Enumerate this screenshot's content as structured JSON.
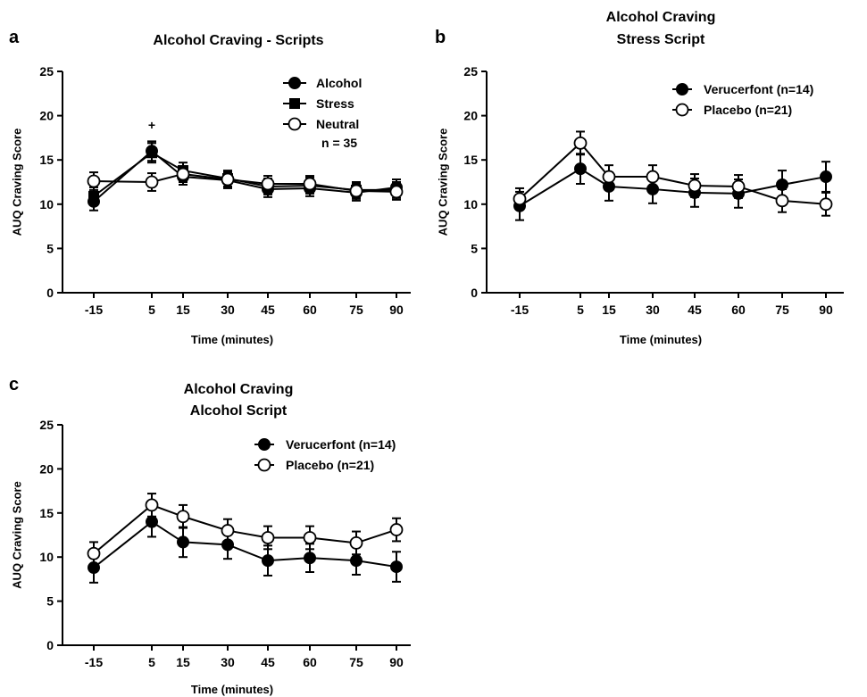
{
  "panels": [
    {
      "letter": "a",
      "title_lines": [
        "Alcohol Craving - Scripts"
      ],
      "note": "n = 35",
      "marker_label": "+"
    },
    {
      "letter": "b",
      "title_lines": [
        "Alcohol Craving",
        "Stress Script"
      ],
      "note": "",
      "marker_label": ""
    },
    {
      "letter": "c",
      "title_lines": [
        "Alcohol Craving",
        "Alcohol Script"
      ],
      "note": "",
      "marker_label": ""
    }
  ],
  "chart_data": [
    {
      "type": "line",
      "title": "Alcohol Craving - Scripts",
      "xlabel": "Time (minutes)",
      "ylabel": "AUQ Craving Score",
      "x": [
        -15,
        5,
        15,
        30,
        45,
        60,
        75,
        90
      ],
      "xticks": [
        "-15",
        "5",
        "15",
        "30",
        "45",
        "60",
        "75",
        "90"
      ],
      "yticks": [
        "0",
        "5",
        "10",
        "15",
        "20",
        "25"
      ],
      "ylim": [
        0,
        25
      ],
      "legend_position": "top-right",
      "annotation": {
        "text": "+",
        "x": 5
      },
      "series": [
        {
          "name": "Alcohol",
          "marker": "filled-circle",
          "values": [
            10.3,
            16.0,
            13.1,
            12.7,
            11.7,
            11.8,
            11.3,
            11.9
          ],
          "errors": [
            1.0,
            1.1,
            0.9,
            0.9,
            0.9,
            0.9,
            0.9,
            0.9
          ]
        },
        {
          "name": "Stress",
          "marker": "filled-square",
          "values": [
            10.9,
            15.8,
            13.8,
            12.9,
            12.0,
            12.1,
            11.6,
            11.6
          ],
          "errors": [
            1.0,
            1.1,
            0.9,
            0.9,
            0.9,
            0.9,
            0.9,
            0.9
          ]
        },
        {
          "name": "Neutral",
          "marker": "open-circle",
          "values": [
            12.6,
            12.5,
            13.4,
            12.8,
            12.3,
            12.3,
            11.5,
            11.4
          ],
          "errors": [
            1.0,
            1.0,
            0.9,
            0.9,
            0.9,
            0.9,
            0.9,
            0.9
          ]
        }
      ]
    },
    {
      "type": "line",
      "title": "Alcohol Craving Stress Script",
      "xlabel": "Time (minutes)",
      "ylabel": "AUQ Craving Score",
      "x": [
        -15,
        5,
        15,
        30,
        45,
        60,
        75,
        90
      ],
      "xticks": [
        "-15",
        "5",
        "15",
        "30",
        "45",
        "60",
        "75",
        "90"
      ],
      "yticks": [
        "0",
        "5",
        "10",
        "15",
        "20",
        "25"
      ],
      "ylim": [
        0,
        25
      ],
      "legend_position": "top-right",
      "series": [
        {
          "name": "Verucerfont (n=14)",
          "marker": "filled-circle",
          "values": [
            9.8,
            14.0,
            12.0,
            11.7,
            11.3,
            11.2,
            12.2,
            13.1
          ],
          "errors": [
            1.6,
            1.7,
            1.6,
            1.6,
            1.6,
            1.6,
            1.6,
            1.7
          ]
        },
        {
          "name": "Placebo (n=21)",
          "marker": "open-circle",
          "values": [
            10.6,
            16.9,
            13.1,
            13.1,
            12.1,
            12.0,
            10.4,
            10.0
          ],
          "errors": [
            1.2,
            1.3,
            1.3,
            1.3,
            1.3,
            1.3,
            1.3,
            1.3
          ]
        }
      ]
    },
    {
      "type": "line",
      "title": "Alcohol Craving Alcohol Script",
      "xlabel": "Time (minutes)",
      "ylabel": "AUQ Craving Score",
      "x": [
        -15,
        5,
        15,
        30,
        45,
        60,
        75,
        90
      ],
      "xticks": [
        "-15",
        "5",
        "15",
        "30",
        "45",
        "60",
        "75",
        "90"
      ],
      "yticks": [
        "0",
        "5",
        "10",
        "15",
        "20",
        "25"
      ],
      "ylim": [
        0,
        25
      ],
      "legend_position": "top-right",
      "series": [
        {
          "name": "Verucerfont (n=14)",
          "marker": "filled-circle",
          "values": [
            8.8,
            14.0,
            11.7,
            11.4,
            9.6,
            9.9,
            9.6,
            8.9
          ],
          "errors": [
            1.7,
            1.7,
            1.7,
            1.6,
            1.7,
            1.6,
            1.6,
            1.7
          ]
        },
        {
          "name": "Placebo (n=21)",
          "marker": "open-circle",
          "values": [
            10.4,
            15.9,
            14.6,
            13.0,
            12.2,
            12.2,
            11.6,
            13.1
          ],
          "errors": [
            1.3,
            1.3,
            1.3,
            1.3,
            1.3,
            1.3,
            1.3,
            1.3
          ]
        }
      ]
    }
  ]
}
